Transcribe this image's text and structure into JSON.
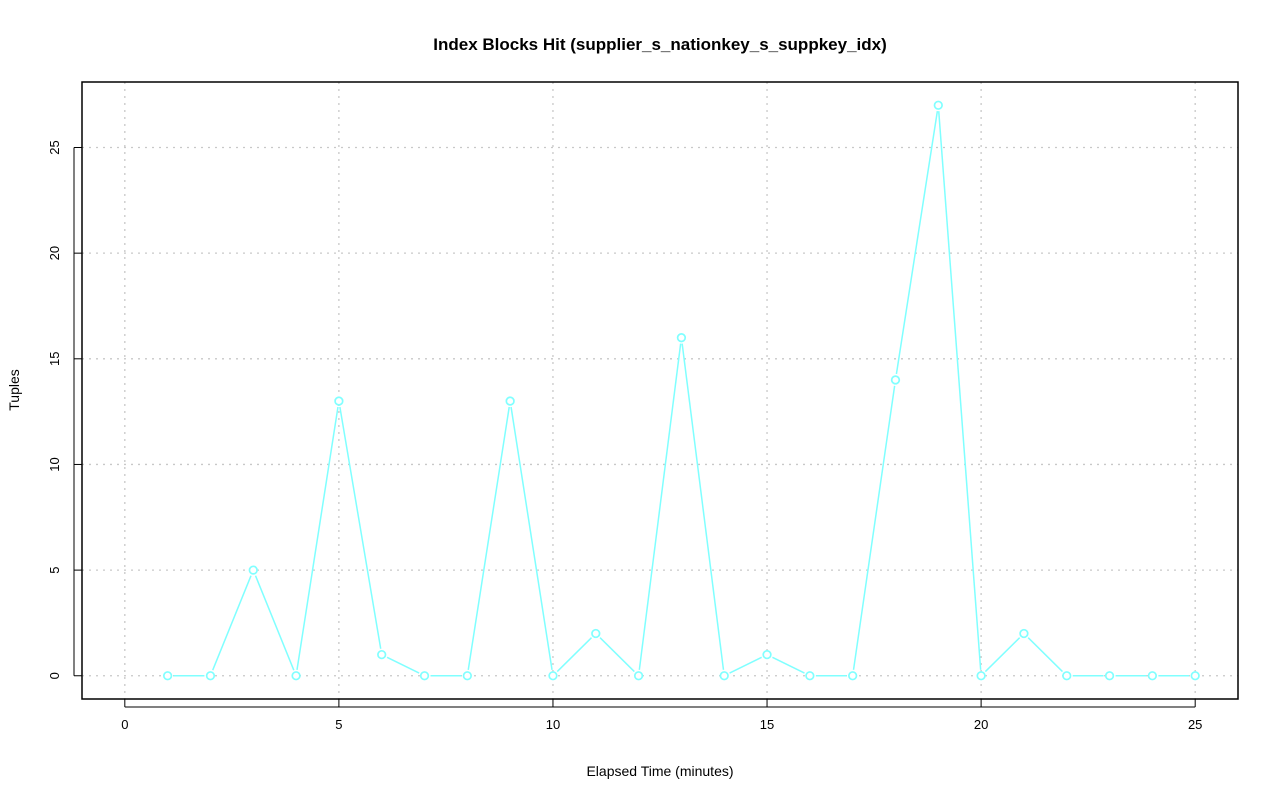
{
  "chart_data": {
    "type": "line",
    "title": "Index Blocks Hit (supplier_s_nationkey_s_suppkey_idx)",
    "xlabel": "Elapsed Time (minutes)",
    "ylabel": "Tuples",
    "xlim": [
      -1,
      26
    ],
    "ylim": [
      -1.1,
      28.1
    ],
    "xticks": [
      0,
      5,
      10,
      15,
      20,
      25
    ],
    "yticks": [
      0,
      5,
      10,
      15,
      20,
      25
    ],
    "grid": true,
    "series": [
      {
        "color": "#80ffff",
        "marker": "open-circle",
        "x": [
          1,
          2,
          3,
          4,
          5,
          6,
          7,
          8,
          9,
          10,
          11,
          12,
          13,
          14,
          15,
          16,
          17,
          18,
          19,
          20,
          21,
          22,
          23,
          24,
          25
        ],
        "y": [
          0,
          0,
          5,
          0,
          13,
          1,
          0,
          0,
          13,
          0,
          2,
          0,
          16,
          0,
          1,
          0,
          0,
          14,
          27,
          0,
          2,
          0,
          0,
          0,
          0
        ]
      }
    ]
  }
}
